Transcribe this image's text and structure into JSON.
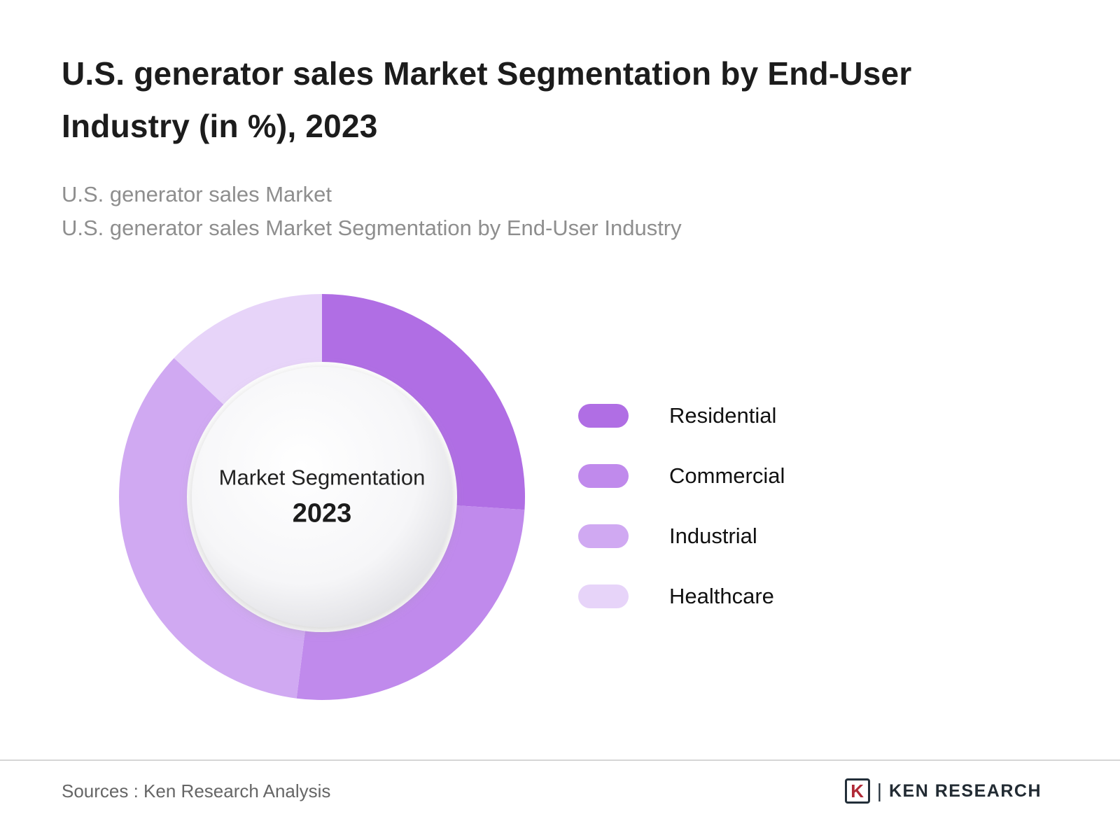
{
  "header": {
    "title": "U.S. generator sales Market Segmentation by End-User Industry (in %), 2023",
    "subtitle1": "U.S. generator sales Market",
    "subtitle2": "U.S. generator sales Market Segmentation by End-User Industry"
  },
  "chart_data": {
    "type": "pie",
    "donut": true,
    "title": "U.S. generator sales Market Segmentation by End-User Industry (in %), 2023",
    "center_label": "Market Segmentation",
    "center_year": "2023",
    "categories": [
      "Residential",
      "Commercial",
      "Industrial",
      "Healthcare"
    ],
    "values": [
      26,
      26,
      35,
      13
    ],
    "colors": [
      "#b06ee4",
      "#c08aec",
      "#d0a9f2",
      "#e7d4f9"
    ],
    "start_angle_deg": 0,
    "direction": "clockwise",
    "legend_position": "right",
    "inner_hole_fill": "radial white-to-gray gradient"
  },
  "footer": {
    "sources": "Sources : Ken Research Analysis",
    "logo_letter": "K",
    "logo_separator": "|",
    "logo_text": "KEN RESEARCH"
  }
}
